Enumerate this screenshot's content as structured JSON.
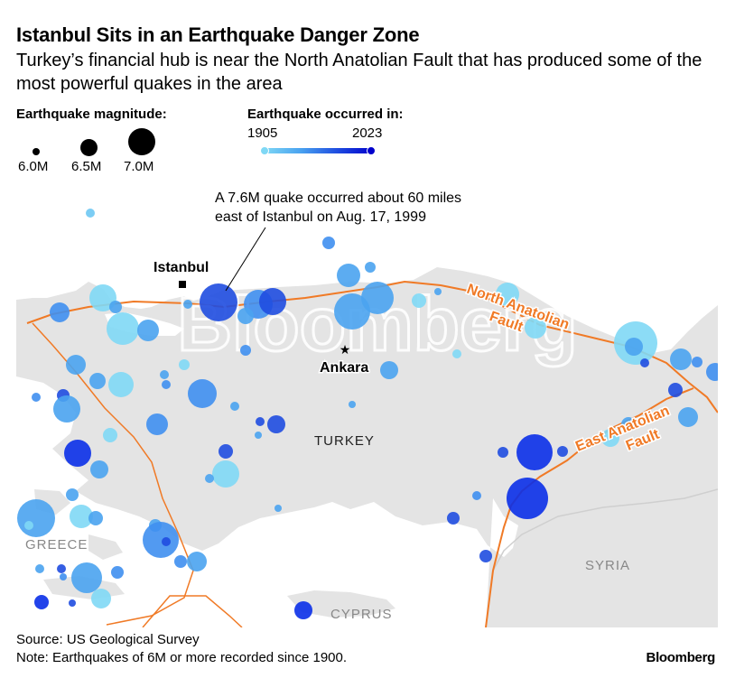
{
  "title": "Istanbul Sits in an Earthquake Danger Zone",
  "subtitle": "Turkey’s financial hub is near the North Anatolian Fault that has produced some of the most powerful quakes in the area",
  "legend": {
    "magnitude_title": "Earthquake magnitude:",
    "magnitudes": [
      "6.0M",
      "6.5M",
      "7.0M"
    ],
    "year_title": "Earthquake occurred in:",
    "year_start": "1905",
    "year_end": "2023",
    "year_colors": [
      "#7fd8f5",
      "#0000cc"
    ]
  },
  "map": {
    "annotation_line1": "A 7.6M quake occurred about 60 miles",
    "annotation_line2": "east of Istanbul on Aug. 17, 1999",
    "labels": {
      "istanbul": "Istanbul",
      "ankara": "Ankara",
      "turkey": "TURKEY",
      "greece": "GREECE",
      "syria": "SYRIA",
      "cyprus": "CYPRUS",
      "north_fault_1": "North Anatolian",
      "north_fault_2": "Fault",
      "east_fault_1": "East Anatolian",
      "east_fault_2": "Fault"
    },
    "watermark": "Bloomberg",
    "colors": {
      "land": "#e4e4e4",
      "sea": "#ffffff",
      "fault": "#f07a26",
      "recent_quake": "#0a2fe8",
      "old_quake": "#7fd8f5"
    }
  },
  "footer": {
    "source": "Source: US Geological Survey",
    "note": "Note: Earthquakes of 6M or more recorded since 1900.",
    "brand": "Bloomberg"
  }
}
